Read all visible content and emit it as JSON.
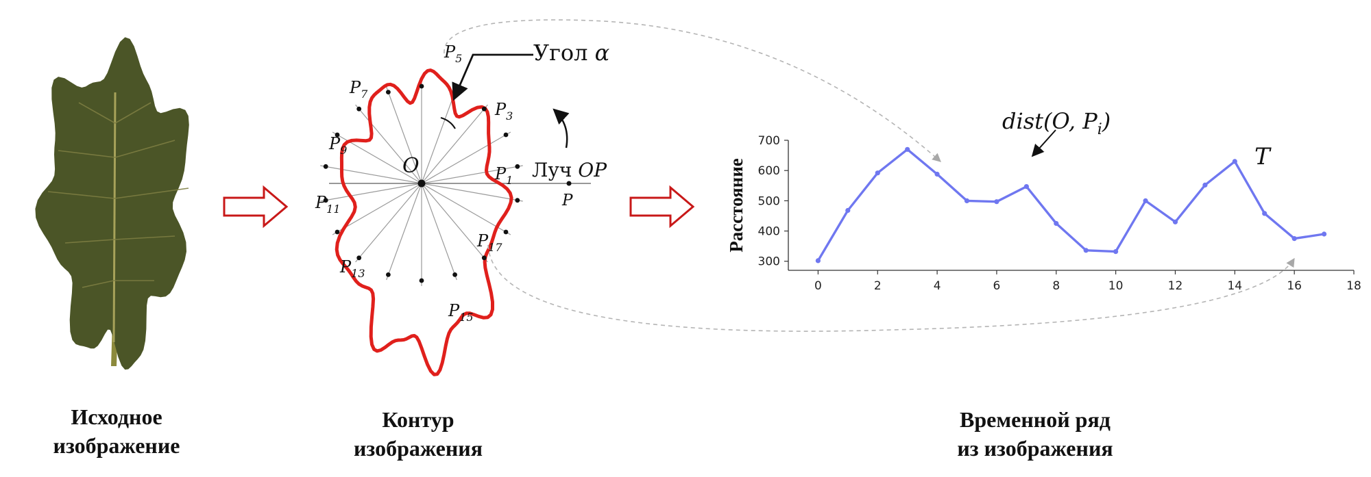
{
  "captions": {
    "source": [
      "Исходное",
      "изображение"
    ],
    "contour": [
      "Контур",
      "изображения"
    ],
    "series": [
      "Временной ряд",
      "из изображения"
    ]
  },
  "contour_labels": {
    "origin": "O",
    "angle": "Угол α",
    "ray_word": "Луч",
    "ray_name": "OP",
    "point": "P",
    "points": [
      "P1",
      "P3",
      "P5",
      "P7",
      "P9",
      "P11",
      "P13",
      "P15",
      "P17"
    ]
  },
  "chart_labels": {
    "dist": "dist(O, Pi)",
    "series_symbol": "T"
  },
  "colors": {
    "leaf": "#4b5527",
    "contour": "#e0201c",
    "arrow_outline": "#c81818",
    "series": "#6f77f0"
  },
  "chart_data": {
    "type": "line",
    "title": "",
    "xlabel": "",
    "ylabel": "Расстояние",
    "x": [
      0,
      1,
      2,
      3,
      4,
      5,
      6,
      7,
      8,
      9,
      10,
      11,
      12,
      13,
      14,
      15,
      16,
      17
    ],
    "values": [
      302,
      468,
      592,
      670,
      588,
      500,
      497,
      547,
      425,
      336,
      332,
      500,
      430,
      552,
      630,
      458,
      375,
      390
    ],
    "xlim": [
      -1,
      18
    ],
    "ylim": [
      270,
      700
    ],
    "xticks": [
      0,
      2,
      4,
      6,
      8,
      10,
      12,
      14,
      16,
      18
    ],
    "yticks": [
      300,
      400,
      500,
      600,
      700
    ],
    "grid": false,
    "legend": "none"
  }
}
